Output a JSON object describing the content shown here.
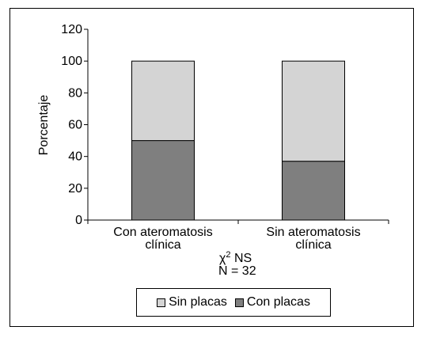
{
  "chart_data": {
    "type": "bar",
    "stacked": true,
    "categories": [
      [
        "Con ateromatosis",
        "clínica"
      ],
      [
        "Sin ateromatosis",
        "clínica"
      ]
    ],
    "series": [
      {
        "name": "Con placas",
        "values": [
          50,
          37
        ],
        "color": "#7f7f7f"
      },
      {
        "name": "Sin placas",
        "values": [
          50,
          63
        ],
        "color": "#d4d4d4"
      }
    ],
    "ylabel": "Porcentaje",
    "xlabel": "",
    "ylim": [
      0,
      120
    ],
    "yticks": [
      0,
      20,
      40,
      60,
      80,
      100,
      120
    ],
    "grid": false,
    "legend_placement": "bottom",
    "legend_order": [
      "Sin placas",
      "Con placas"
    ],
    "annotations": {
      "chi_symbol": "χ",
      "chi_superscript": "2",
      "chi_text": " NS",
      "n_text": "N = 32"
    }
  }
}
